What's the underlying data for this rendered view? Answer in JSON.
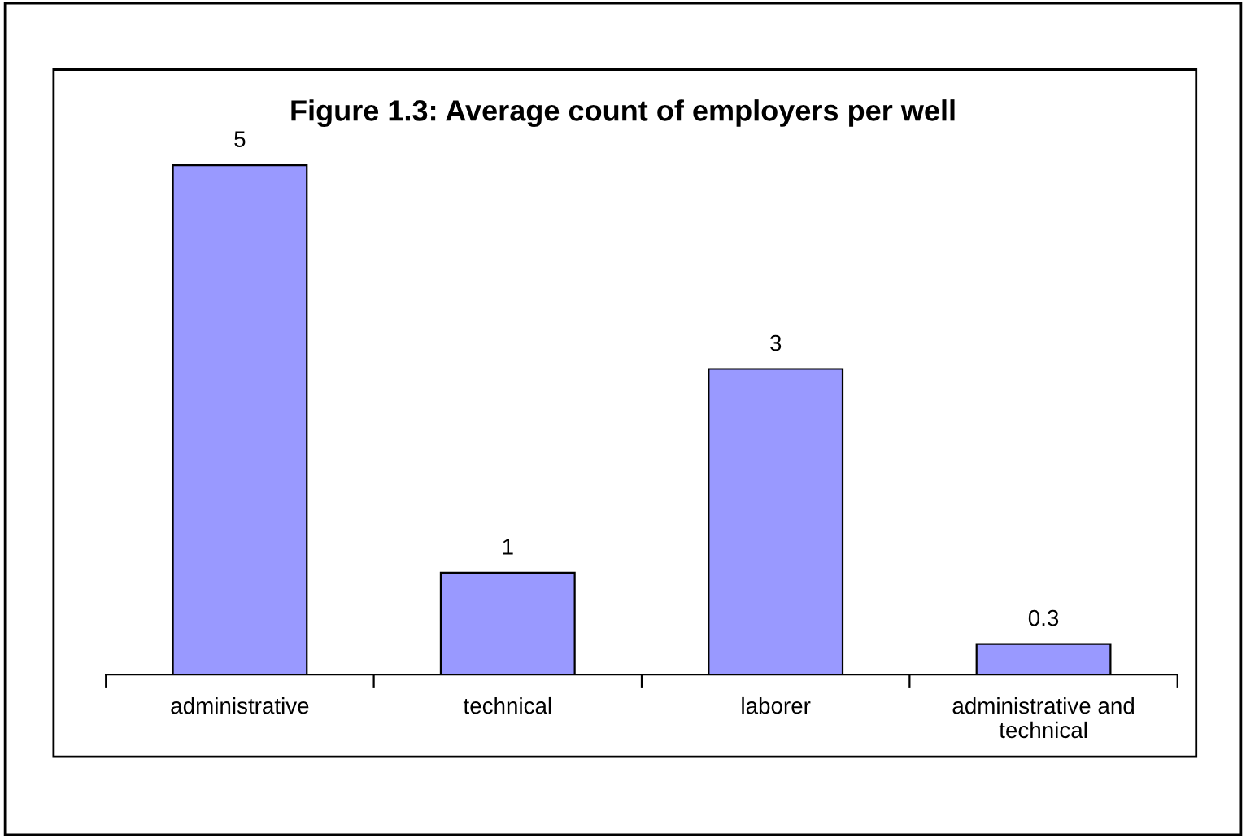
{
  "chart_data": {
    "type": "bar",
    "title": "Figure 1.3: Average count of employers per well",
    "categories": [
      "administrative",
      "technical",
      "laborer",
      "administrative and technical"
    ],
    "values": [
      5,
      1,
      3,
      0.3
    ],
    "color": "#9999ff",
    "data_labels": true,
    "grid": false,
    "legend": false
  }
}
